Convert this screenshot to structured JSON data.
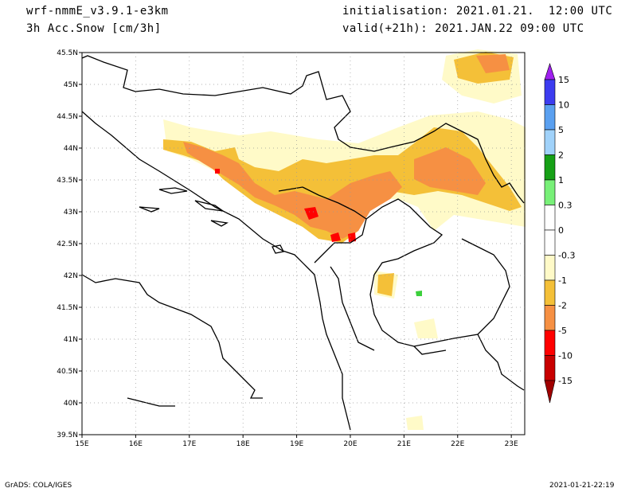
{
  "header": {
    "model": "wrf-nmmE_v3.9.1-e3km",
    "field": "3h Acc.Snow [cm/3h]",
    "init": "initialisation: 2021.01.21.  12:00 UTC",
    "valid": "valid(+21h): 2021.JAN.22 09:00 UTC"
  },
  "axes": {
    "lat_labels": [
      "45.5N",
      "45N",
      "44.5N",
      "44N",
      "43.5N",
      "43N",
      "42.5N",
      "42N",
      "41.5N",
      "41N",
      "40.5N",
      "40N",
      "39.5N"
    ],
    "lat_values": [
      45.5,
      45,
      44.5,
      44,
      43.5,
      43,
      42.5,
      42,
      41.5,
      41,
      40.5,
      40,
      39.5
    ],
    "lon_labels": [
      "15E",
      "16E",
      "17E",
      "18E",
      "19E",
      "20E",
      "21E",
      "22E",
      "23E"
    ],
    "lon_values": [
      15,
      16,
      17,
      18,
      19,
      20,
      21,
      22,
      23
    ],
    "lon_range": [
      15,
      23.25
    ],
    "lat_range": [
      39.5,
      45.5
    ],
    "grid": "dotted"
  },
  "colorbar": {
    "labels": [
      "15",
      "10",
      "5",
      "2",
      "1",
      "0.3",
      "0",
      "-0.3",
      "-1",
      "-2",
      "-5",
      "-10",
      "-15"
    ],
    "colors": [
      "#a020f0",
      "#3c3cf0",
      "#5aa0f0",
      "#a0d2fa",
      "#16a016",
      "#78f078",
      "#ffffff",
      "#ffffff",
      "#fffac8",
      "#f4c038",
      "#f69043",
      "#ff0000",
      "#c80000",
      "#a00000"
    ]
  },
  "footer": {
    "left": "GrADS: COLA/IGES",
    "right": "2021-01-21-22:19"
  }
}
